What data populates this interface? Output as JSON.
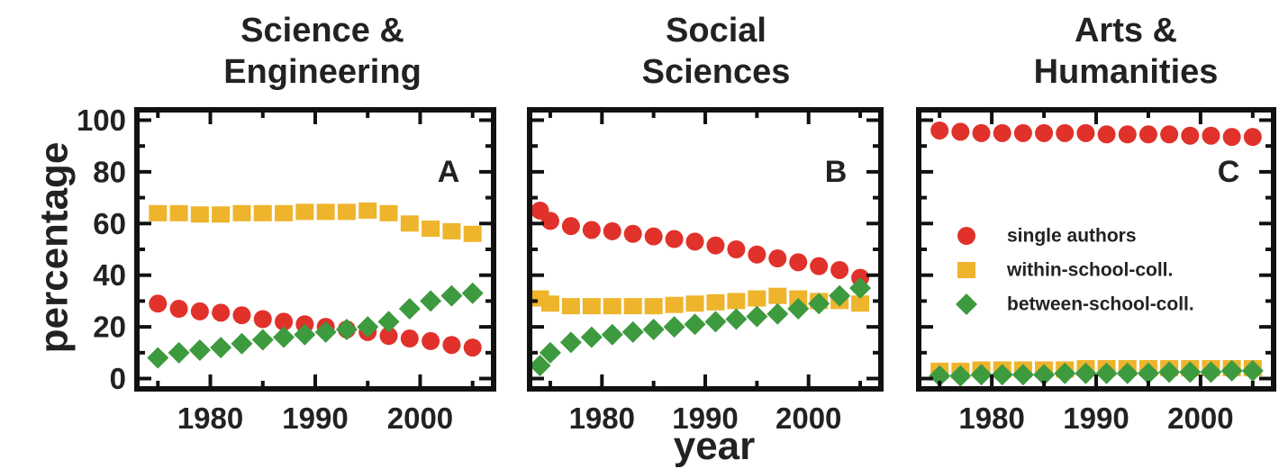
{
  "chart_data": [
    {
      "type": "scatter",
      "title": "Science & Engineering",
      "title_lines": [
        "Science &",
        "Engineering"
      ],
      "panel_label": "A",
      "xlabel": "year",
      "ylabel": "percentage",
      "xlim": [
        1973,
        2007
      ],
      "ylim": [
        -4,
        104
      ],
      "xticks": [
        1980,
        1990,
        2000
      ],
      "yticks": [
        0,
        20,
        40,
        60,
        80,
        100
      ],
      "grid": false,
      "series": [
        {
          "name": "single authors",
          "color": "#e1312b",
          "marker": "circle",
          "x": [
            1975,
            1977,
            1979,
            1981,
            1983,
            1985,
            1987,
            1989,
            1991,
            1993,
            1995,
            1997,
            1999,
            2001,
            2003,
            2005
          ],
          "values": [
            29,
            27,
            26,
            25.5,
            24.5,
            23,
            22,
            21,
            20,
            19,
            18,
            16.5,
            15.5,
            14.5,
            13,
            12
          ]
        },
        {
          "name": "within-school-coll.",
          "color": "#eeb42c",
          "marker": "square",
          "x": [
            1975,
            1977,
            1979,
            1981,
            1983,
            1985,
            1987,
            1989,
            1991,
            1993,
            1995,
            1997,
            1999,
            2001,
            2003,
            2005
          ],
          "values": [
            64,
            64,
            63.5,
            63.5,
            64,
            64,
            64,
            64.5,
            64.5,
            64.5,
            65,
            64,
            60,
            58,
            57,
            56
          ]
        },
        {
          "name": "between-school-coll.",
          "color": "#3d9a3e",
          "marker": "diamond",
          "x": [
            1975,
            1977,
            1979,
            1981,
            1983,
            1985,
            1987,
            1989,
            1991,
            1993,
            1995,
            1997,
            1999,
            2001,
            2003,
            2005
          ],
          "values": [
            8,
            10,
            11,
            12,
            13.5,
            15,
            16,
            17,
            18,
            19,
            20,
            22,
            27,
            30,
            32,
            33
          ]
        }
      ]
    },
    {
      "type": "scatter",
      "title": "Social Sciences",
      "title_lines": [
        "Social",
        "Sciences"
      ],
      "panel_label": "B",
      "xlabel": "year",
      "ylabel": "percentage",
      "xlim": [
        1973,
        2007
      ],
      "ylim": [
        -4,
        104
      ],
      "xticks": [
        1980,
        1990,
        2000
      ],
      "yticks": [
        0,
        20,
        40,
        60,
        80,
        100
      ],
      "grid": false,
      "series": [
        {
          "name": "single authors",
          "color": "#e1312b",
          "marker": "circle",
          "x": [
            1974,
            1975,
            1977,
            1979,
            1981,
            1983,
            1985,
            1987,
            1989,
            1991,
            1993,
            1995,
            1997,
            1999,
            2001,
            2003,
            2005
          ],
          "values": [
            65,
            61,
            59,
            57.5,
            57,
            56,
            55,
            54,
            53,
            51.5,
            50,
            48,
            46.5,
            45,
            43.5,
            42,
            39
          ]
        },
        {
          "name": "within-school-coll.",
          "color": "#eeb42c",
          "marker": "square",
          "x": [
            1974,
            1975,
            1977,
            1979,
            1981,
            1983,
            1985,
            1987,
            1989,
            1991,
            1993,
            1995,
            1997,
            1999,
            2001,
            2003,
            2005
          ],
          "values": [
            31,
            29,
            28,
            28,
            28,
            28,
            28,
            28.5,
            29,
            29.5,
            30,
            31,
            32,
            31,
            30,
            30,
            29
          ]
        },
        {
          "name": "between-school-coll.",
          "color": "#3d9a3e",
          "marker": "diamond",
          "x": [
            1974,
            1975,
            1977,
            1979,
            1981,
            1983,
            1985,
            1987,
            1989,
            1991,
            1993,
            1995,
            1997,
            1999,
            2001,
            2003,
            2005
          ],
          "values": [
            5,
            10,
            14,
            16,
            17,
            18,
            19,
            20,
            21,
            22,
            23,
            24,
            25,
            27,
            29,
            32,
            35
          ]
        }
      ]
    },
    {
      "type": "scatter",
      "title": "Arts & Humanities",
      "title_lines": [
        "Arts &",
        "Humanities"
      ],
      "panel_label": "C",
      "xlabel": "year",
      "ylabel": "percentage",
      "xlim": [
        1973,
        2007
      ],
      "ylim": [
        -4,
        104
      ],
      "xticks": [
        1980,
        1990,
        2000
      ],
      "yticks": [
        0,
        20,
        40,
        60,
        80,
        100
      ],
      "grid": false,
      "legend_position": "center-right",
      "series": [
        {
          "name": "single authors",
          "color": "#e1312b",
          "marker": "circle",
          "x": [
            1975,
            1977,
            1979,
            1981,
            1983,
            1985,
            1987,
            1989,
            1991,
            1993,
            1995,
            1997,
            1999,
            2001,
            2003,
            2005
          ],
          "values": [
            96,
            95.5,
            95,
            95,
            95,
            95,
            95,
            95,
            94.5,
            94.5,
            94.5,
            94.5,
            94,
            94,
            93.5,
            93.5
          ]
        },
        {
          "name": "within-school-coll.",
          "color": "#eeb42c",
          "marker": "square",
          "x": [
            1975,
            1977,
            1979,
            1981,
            1983,
            1985,
            1987,
            1989,
            1991,
            1993,
            1995,
            1997,
            1999,
            2001,
            2003,
            2005
          ],
          "values": [
            3,
            3,
            3.5,
            3.5,
            3.5,
            3.5,
            3.5,
            4,
            4,
            4,
            4,
            4,
            4,
            4,
            4,
            4
          ]
        },
        {
          "name": "between-school-coll.",
          "color": "#3d9a3e",
          "marker": "diamond",
          "x": [
            1975,
            1977,
            1979,
            1981,
            1983,
            1985,
            1987,
            1989,
            1991,
            1993,
            1995,
            1997,
            1999,
            2001,
            2003,
            2005
          ],
          "values": [
            1,
            1,
            1.5,
            1.5,
            1.5,
            1.5,
            2,
            2,
            2,
            2,
            2,
            2.5,
            2.5,
            2.5,
            3,
            3
          ]
        }
      ]
    }
  ]
}
